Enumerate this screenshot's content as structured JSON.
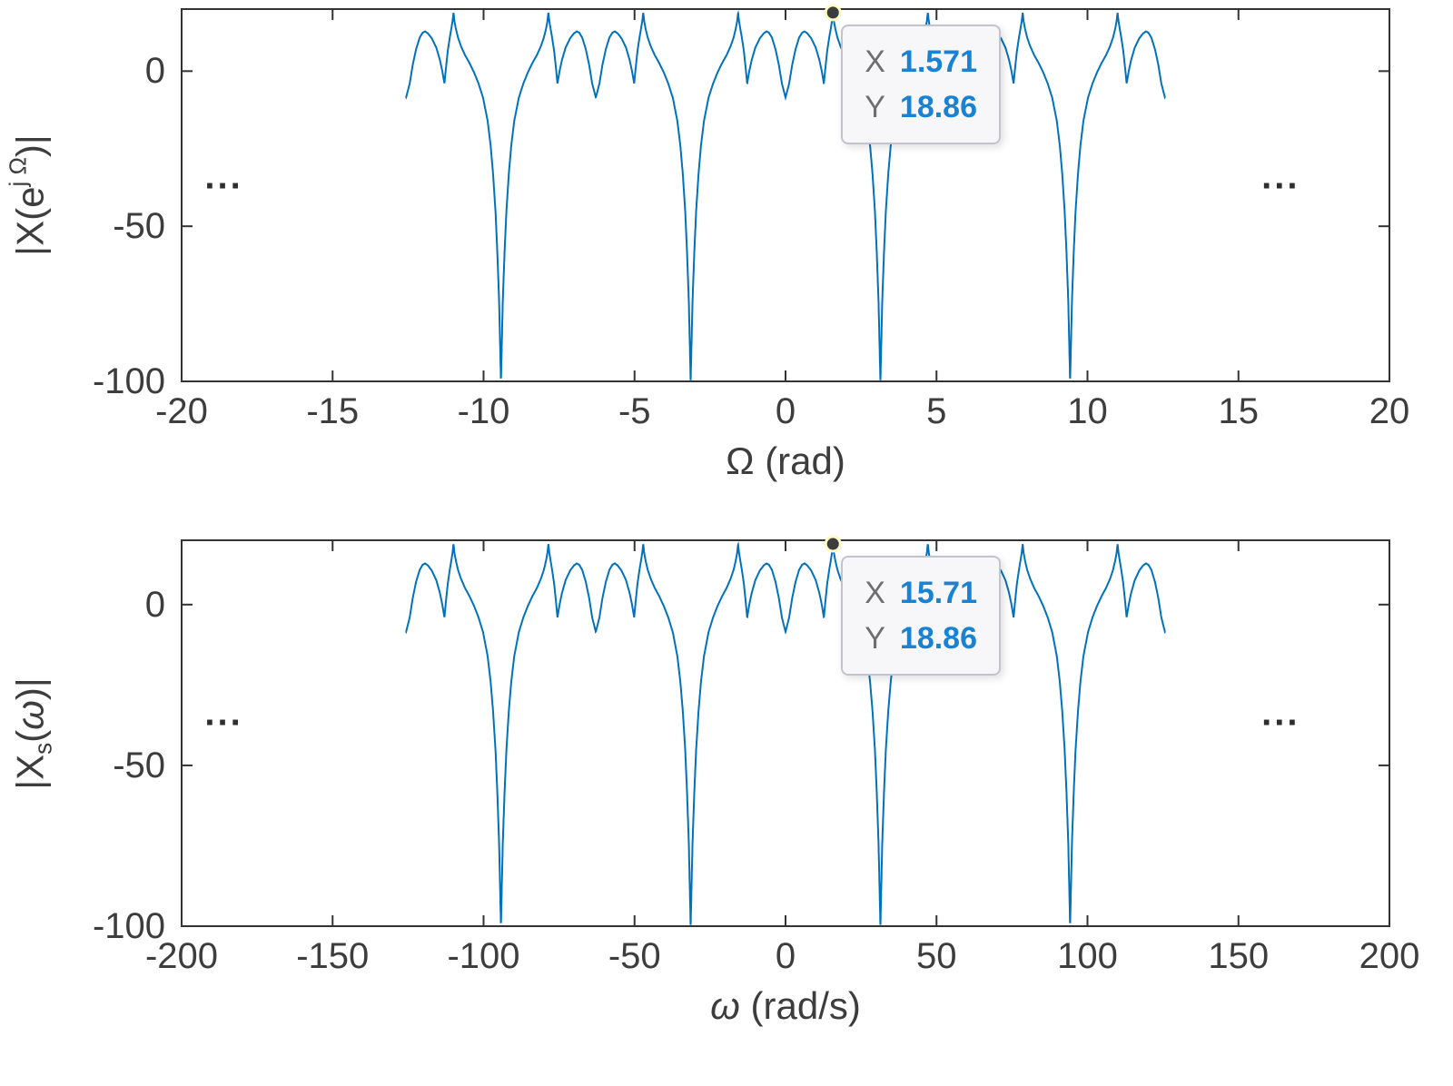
{
  "window": {
    "background": "#ffffff"
  },
  "style": {
    "line_color": "#0072BD",
    "axis_color": "#333333",
    "tick_label_color": "#3d3d3d",
    "label_color": "#3d3d3d",
    "ellipsis_color": "#2e2e2e",
    "datatip_bg": "#f7f7fa",
    "datatip_border": "#c3c3cd",
    "datatip_label_color": "#6e6e6e",
    "datatip_value_color": "#1982d2",
    "marker_fill": "#3c3c3c",
    "marker_ring": "#fff9c4"
  },
  "chart_data": [
    {
      "type": "line",
      "name": "discrete-time-spectrum-magnitude-dB",
      "xlabel_parts": [
        {
          "t": "Ω",
          "style": "normal"
        },
        {
          "t": " (rad)",
          "style": "normal"
        }
      ],
      "ylabel_parts": [
        {
          "t": "|X(e",
          "style": "normal"
        },
        {
          "t": "j Ω",
          "style": "sup"
        },
        {
          "t": ")|",
          "style": "normal"
        }
      ],
      "xlim": [
        -20,
        20
      ],
      "ylim": [
        -100,
        20
      ],
      "xticks": [
        -20,
        -15,
        -10,
        -5,
        0,
        5,
        10,
        15,
        20
      ],
      "xtick_labels": [
        "-20",
        "-15",
        "-10",
        "-5",
        "0",
        "5",
        "10",
        "15",
        "20"
      ],
      "yticks": [
        0,
        -50,
        -100
      ],
      "ytick_labels": [
        "0",
        "-50",
        "-100"
      ],
      "grid": false,
      "legend": null,
      "x_scale": 1,
      "x_domain": [
        -12.57,
        12.57
      ],
      "period": 6.28319,
      "peak_db": 18.86,
      "peaks_x": [
        -10.996,
        -7.854,
        -4.712,
        -1.571,
        1.571,
        4.712,
        7.854,
        10.996
      ],
      "nulls_x": [
        -9.425,
        -3.1416,
        3.1416,
        9.425
      ],
      "sidelobe_centers_x": [
        -12.566,
        -6.283,
        0,
        6.283,
        12.566
      ],
      "datatip": {
        "x": 1.571,
        "y": 18.86,
        "rows": [
          {
            "label": "X",
            "value": "1.571"
          },
          {
            "label": "Y",
            "value": "18.86"
          }
        ]
      },
      "ellipsis": [
        {
          "x": -18.6,
          "y": -34,
          "text": "..."
        },
        {
          "x": 16.4,
          "y": -34,
          "text": "..."
        }
      ]
    },
    {
      "type": "line",
      "name": "sampled-signal-spectrum-magnitude-dB",
      "xlabel_parts": [
        {
          "t": "ω",
          "style": "italic"
        },
        {
          "t": " (rad/s)",
          "style": "normal"
        }
      ],
      "ylabel_parts": [
        {
          "t": "|X",
          "style": "normal"
        },
        {
          "t": "s",
          "style": "sub"
        },
        {
          "t": "(",
          "style": "normal"
        },
        {
          "t": "ω",
          "style": "italic"
        },
        {
          "t": ")|",
          "style": "normal"
        }
      ],
      "xlim": [
        -200,
        200
      ],
      "ylim": [
        -100,
        20
      ],
      "xticks": [
        -200,
        -150,
        -100,
        -50,
        0,
        50,
        100,
        150,
        200
      ],
      "xtick_labels": [
        "-200",
        "-150",
        "-100",
        "-50",
        "0",
        "50",
        "100",
        "150",
        "200"
      ],
      "yticks": [
        0,
        -50,
        -100
      ],
      "ytick_labels": [
        "0",
        "-50",
        "-100"
      ],
      "grid": false,
      "legend": null,
      "x_scale": 10,
      "x_domain": [
        -125.7,
        125.7
      ],
      "period": 62.8319,
      "peak_db": 18.86,
      "peaks_x": [
        -109.96,
        -78.54,
        -47.12,
        -15.71,
        15.71,
        47.12,
        78.54,
        109.96
      ],
      "nulls_x": [
        -94.25,
        -31.416,
        31.416,
        94.25
      ],
      "sidelobe_centers_x": [
        -125.66,
        -62.83,
        0,
        62.83,
        125.66
      ],
      "datatip": {
        "x": 15.71,
        "y": 18.86,
        "rows": [
          {
            "label": "X",
            "value": "15.71"
          },
          {
            "label": "Y",
            "value": "18.86"
          }
        ]
      },
      "ellipsis": [
        {
          "x": -186,
          "y": -34,
          "text": "..."
        },
        {
          "x": 164,
          "y": -34,
          "text": "..."
        }
      ]
    }
  ],
  "curve_template": {
    "description": "One period of the periodic magnitude spectrum in dB; x is phase relative to period center (rad), even-symmetric, period 2π. Both subplots share this shape (bottom x scaled by 10).",
    "period": 6.28319,
    "symmetry": "even",
    "half_period_anchors": [
      [
        0,
        -8.5
      ],
      [
        0.12,
        -4
      ],
      [
        0.22,
        2
      ],
      [
        0.33,
        7
      ],
      [
        0.45,
        10.8
      ],
      [
        0.55,
        12.4
      ],
      [
        0.63,
        12.8
      ],
      [
        0.72,
        12.2
      ],
      [
        0.85,
        10.6
      ],
      [
        1.0,
        7.6
      ],
      [
        1.12,
        3.6
      ],
      [
        1.2,
        0
      ],
      [
        1.27,
        -4
      ],
      [
        1.32,
        1
      ],
      [
        1.38,
        6.5
      ],
      [
        1.45,
        11
      ],
      [
        1.5,
        13.8
      ],
      [
        1.54,
        16.2
      ],
      [
        1.571,
        18.86
      ],
      [
        1.6,
        16.2
      ],
      [
        1.65,
        13.6
      ],
      [
        1.72,
        10.8
      ],
      [
        1.82,
        8
      ],
      [
        1.95,
        5.2
      ],
      [
        2.1,
        2.6
      ],
      [
        2.25,
        -0.4
      ],
      [
        2.4,
        -4
      ],
      [
        2.55,
        -8.6
      ],
      [
        2.7,
        -16
      ],
      [
        2.8,
        -24
      ],
      [
        2.88,
        -33
      ],
      [
        2.96,
        -45
      ],
      [
        3.02,
        -58
      ],
      [
        3.08,
        -74
      ],
      [
        3.1416,
        -100
      ]
    ]
  }
}
